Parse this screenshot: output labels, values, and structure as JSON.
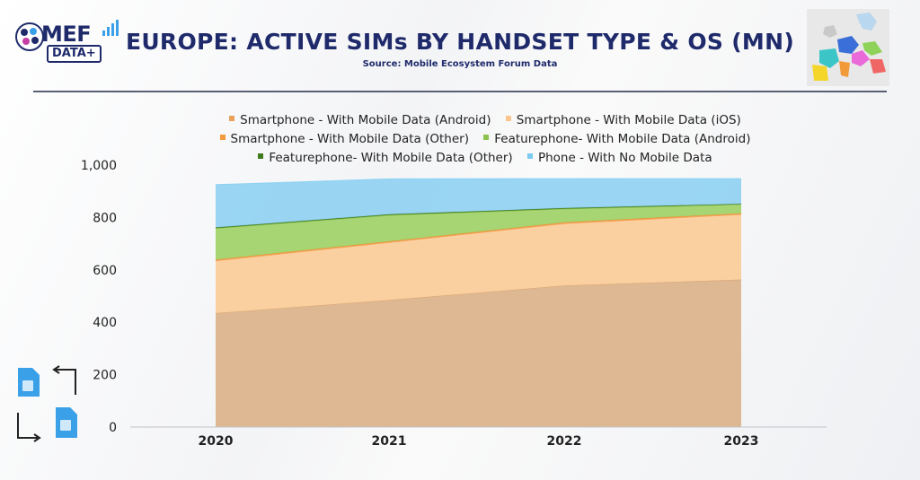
{
  "header": {
    "logo_main": "MEF",
    "logo_sub": "DATA+",
    "title": "EUROPE: ACTIVE SIMs BY HANDSET TYPE & OS (MN)",
    "source": "Source: Mobile Ecosystem Forum Data"
  },
  "icons": {
    "logo": "mef-data-logo-icon",
    "map": "europe-map-icon",
    "sim": "sim-swap-icon"
  },
  "colors": {
    "title": "#1f2a6b",
    "android_smartphone": "#dcb48c",
    "ios_smartphone": "#fbcd9c",
    "other_smartphone": "#f4a15b",
    "featurephone_android": "#a2d36b",
    "featurephone_other": "#5a8f2a",
    "no_data_phone": "#8fd2f2"
  },
  "legend": [
    {
      "label": "Smartphone - With Mobile Data (Android)",
      "color": "#e8a05a"
    },
    {
      "label": "Smartphone - With Mobile Data (iOS)",
      "color": "#fbc58c"
    },
    {
      "label": "Smartphone - With Mobile Data (Other)",
      "color": "#f39a3c"
    },
    {
      "label": "Featurephone- With Mobile Data (Android)",
      "color": "#8cc24f"
    },
    {
      "label": "Featurephone- With Mobile Data (Other)",
      "color": "#3f7a1f"
    },
    {
      "label": "Phone - With No Mobile Data",
      "color": "#7ccaf0"
    }
  ],
  "chart_data": {
    "type": "area",
    "stacked": true,
    "title": "EUROPE: ACTIVE SIMs BY HANDSET TYPE & OS (MN)",
    "xlabel": "",
    "ylabel": "",
    "x": [
      "2020",
      "2021",
      "2022",
      "2023"
    ],
    "ylim": [
      0,
      1000
    ],
    "yticks": [
      "0",
      "200",
      "400",
      "600",
      "800",
      "1,000"
    ],
    "grid": false,
    "legend_position": "top",
    "series": [
      {
        "name": "Smartphone - With Mobile Data (Android)",
        "values": [
          435,
          485,
          540,
          563
        ]
      },
      {
        "name": "Smartphone - With Mobile Data (iOS)",
        "values": [
          200,
          220,
          237,
          249
        ]
      },
      {
        "name": "Smartphone - With Mobile Data (Other)",
        "values": [
          4,
          4,
          4,
          4
        ]
      },
      {
        "name": "Featurephone- With Mobile Data (Android)",
        "values": [
          120,
          100,
          52,
          34
        ]
      },
      {
        "name": "Featurephone- With Mobile Data (Other)",
        "values": [
          3,
          3,
          3,
          2
        ]
      },
      {
        "name": "Phone - With No Mobile Data",
        "values": [
          163,
          135,
          112,
          96
        ]
      }
    ]
  }
}
